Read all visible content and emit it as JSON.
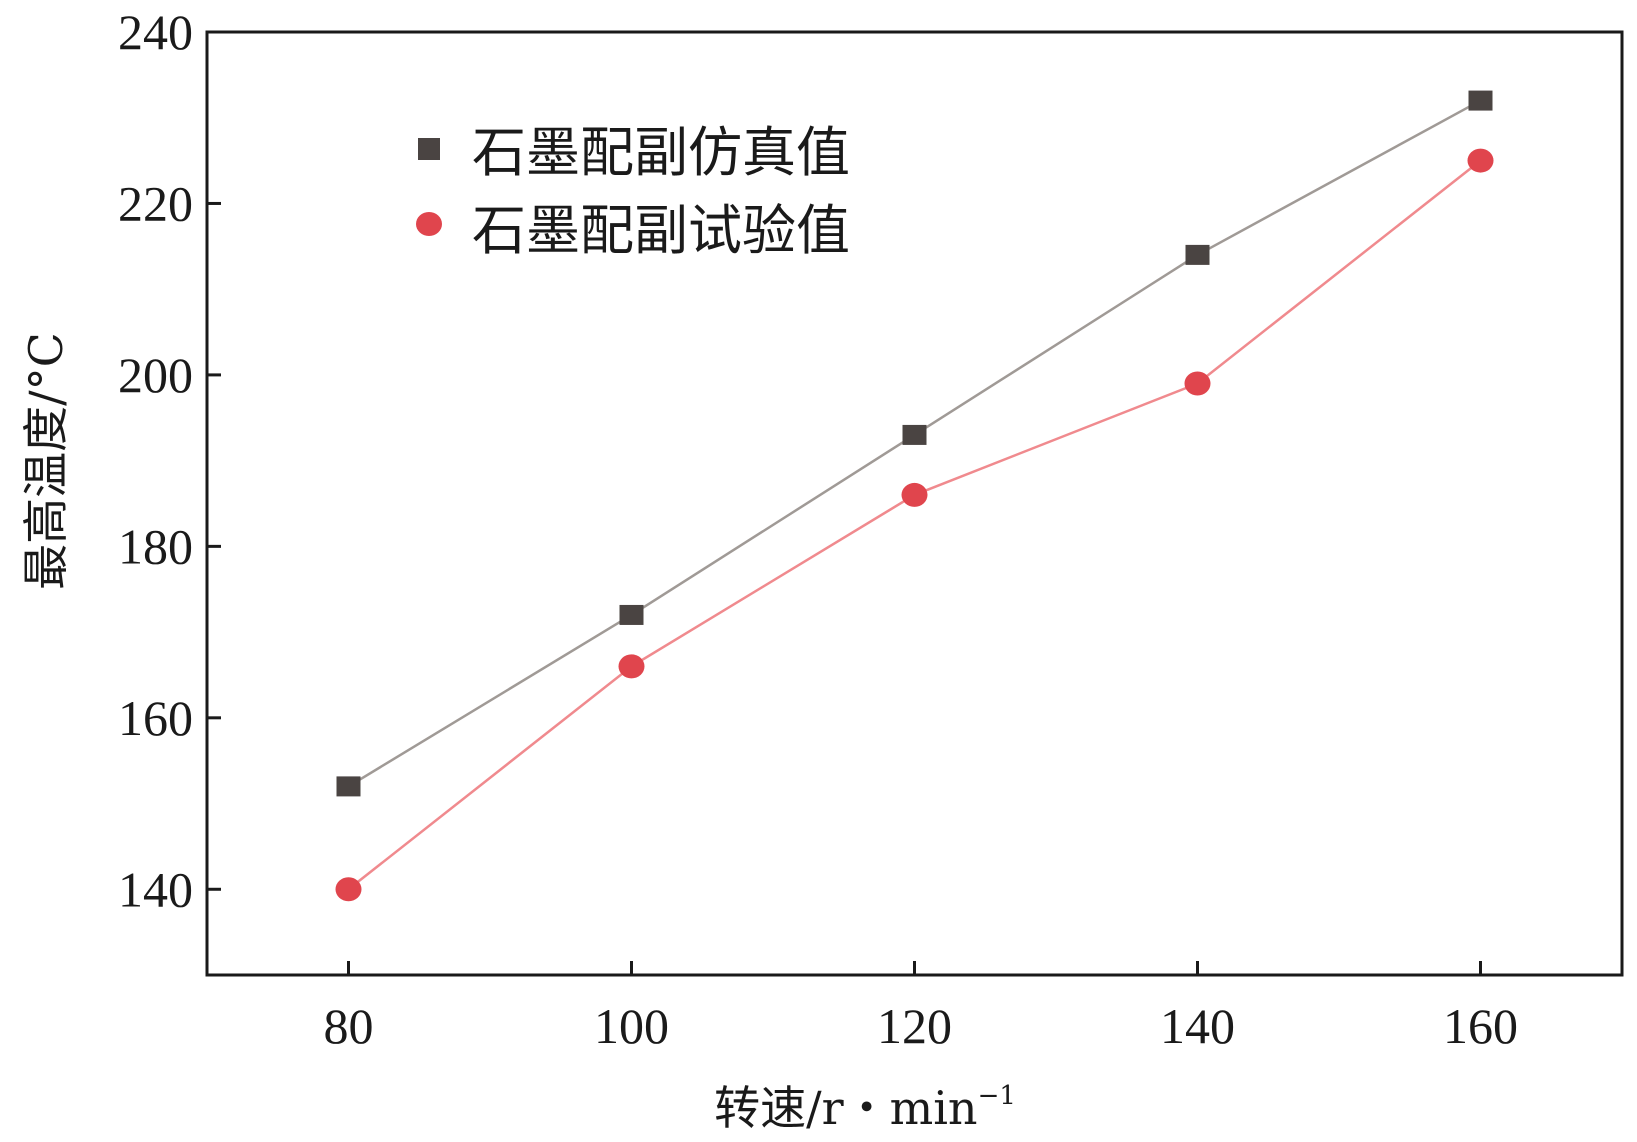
{
  "chart_data": {
    "type": "line",
    "x": [
      80,
      100,
      120,
      140,
      160
    ],
    "series": [
      {
        "name": "石墨配副仿真值",
        "values": [
          152,
          172,
          193,
          214,
          232
        ],
        "marker": "square",
        "line_color": "#a09a96",
        "marker_color": "#4a4442"
      },
      {
        "name": "石墨配副试验值",
        "values": [
          140,
          166,
          186,
          199,
          225
        ],
        "marker": "circle",
        "line_color": "#f08a8e",
        "marker_color": "#e0454d"
      }
    ],
    "xlabel_main": "转速/r・min",
    "xlabel_sup": "−1",
    "ylabel": "最高温度/°C",
    "xlim": [
      70,
      170
    ],
    "ylim": [
      130,
      240
    ],
    "xticks": [
      "80",
      "100",
      "120",
      "140",
      "160"
    ],
    "yticks": [
      "140",
      "160",
      "180",
      "200",
      "220",
      "240"
    ],
    "legend_position": "top-left",
    "grid": false
  }
}
